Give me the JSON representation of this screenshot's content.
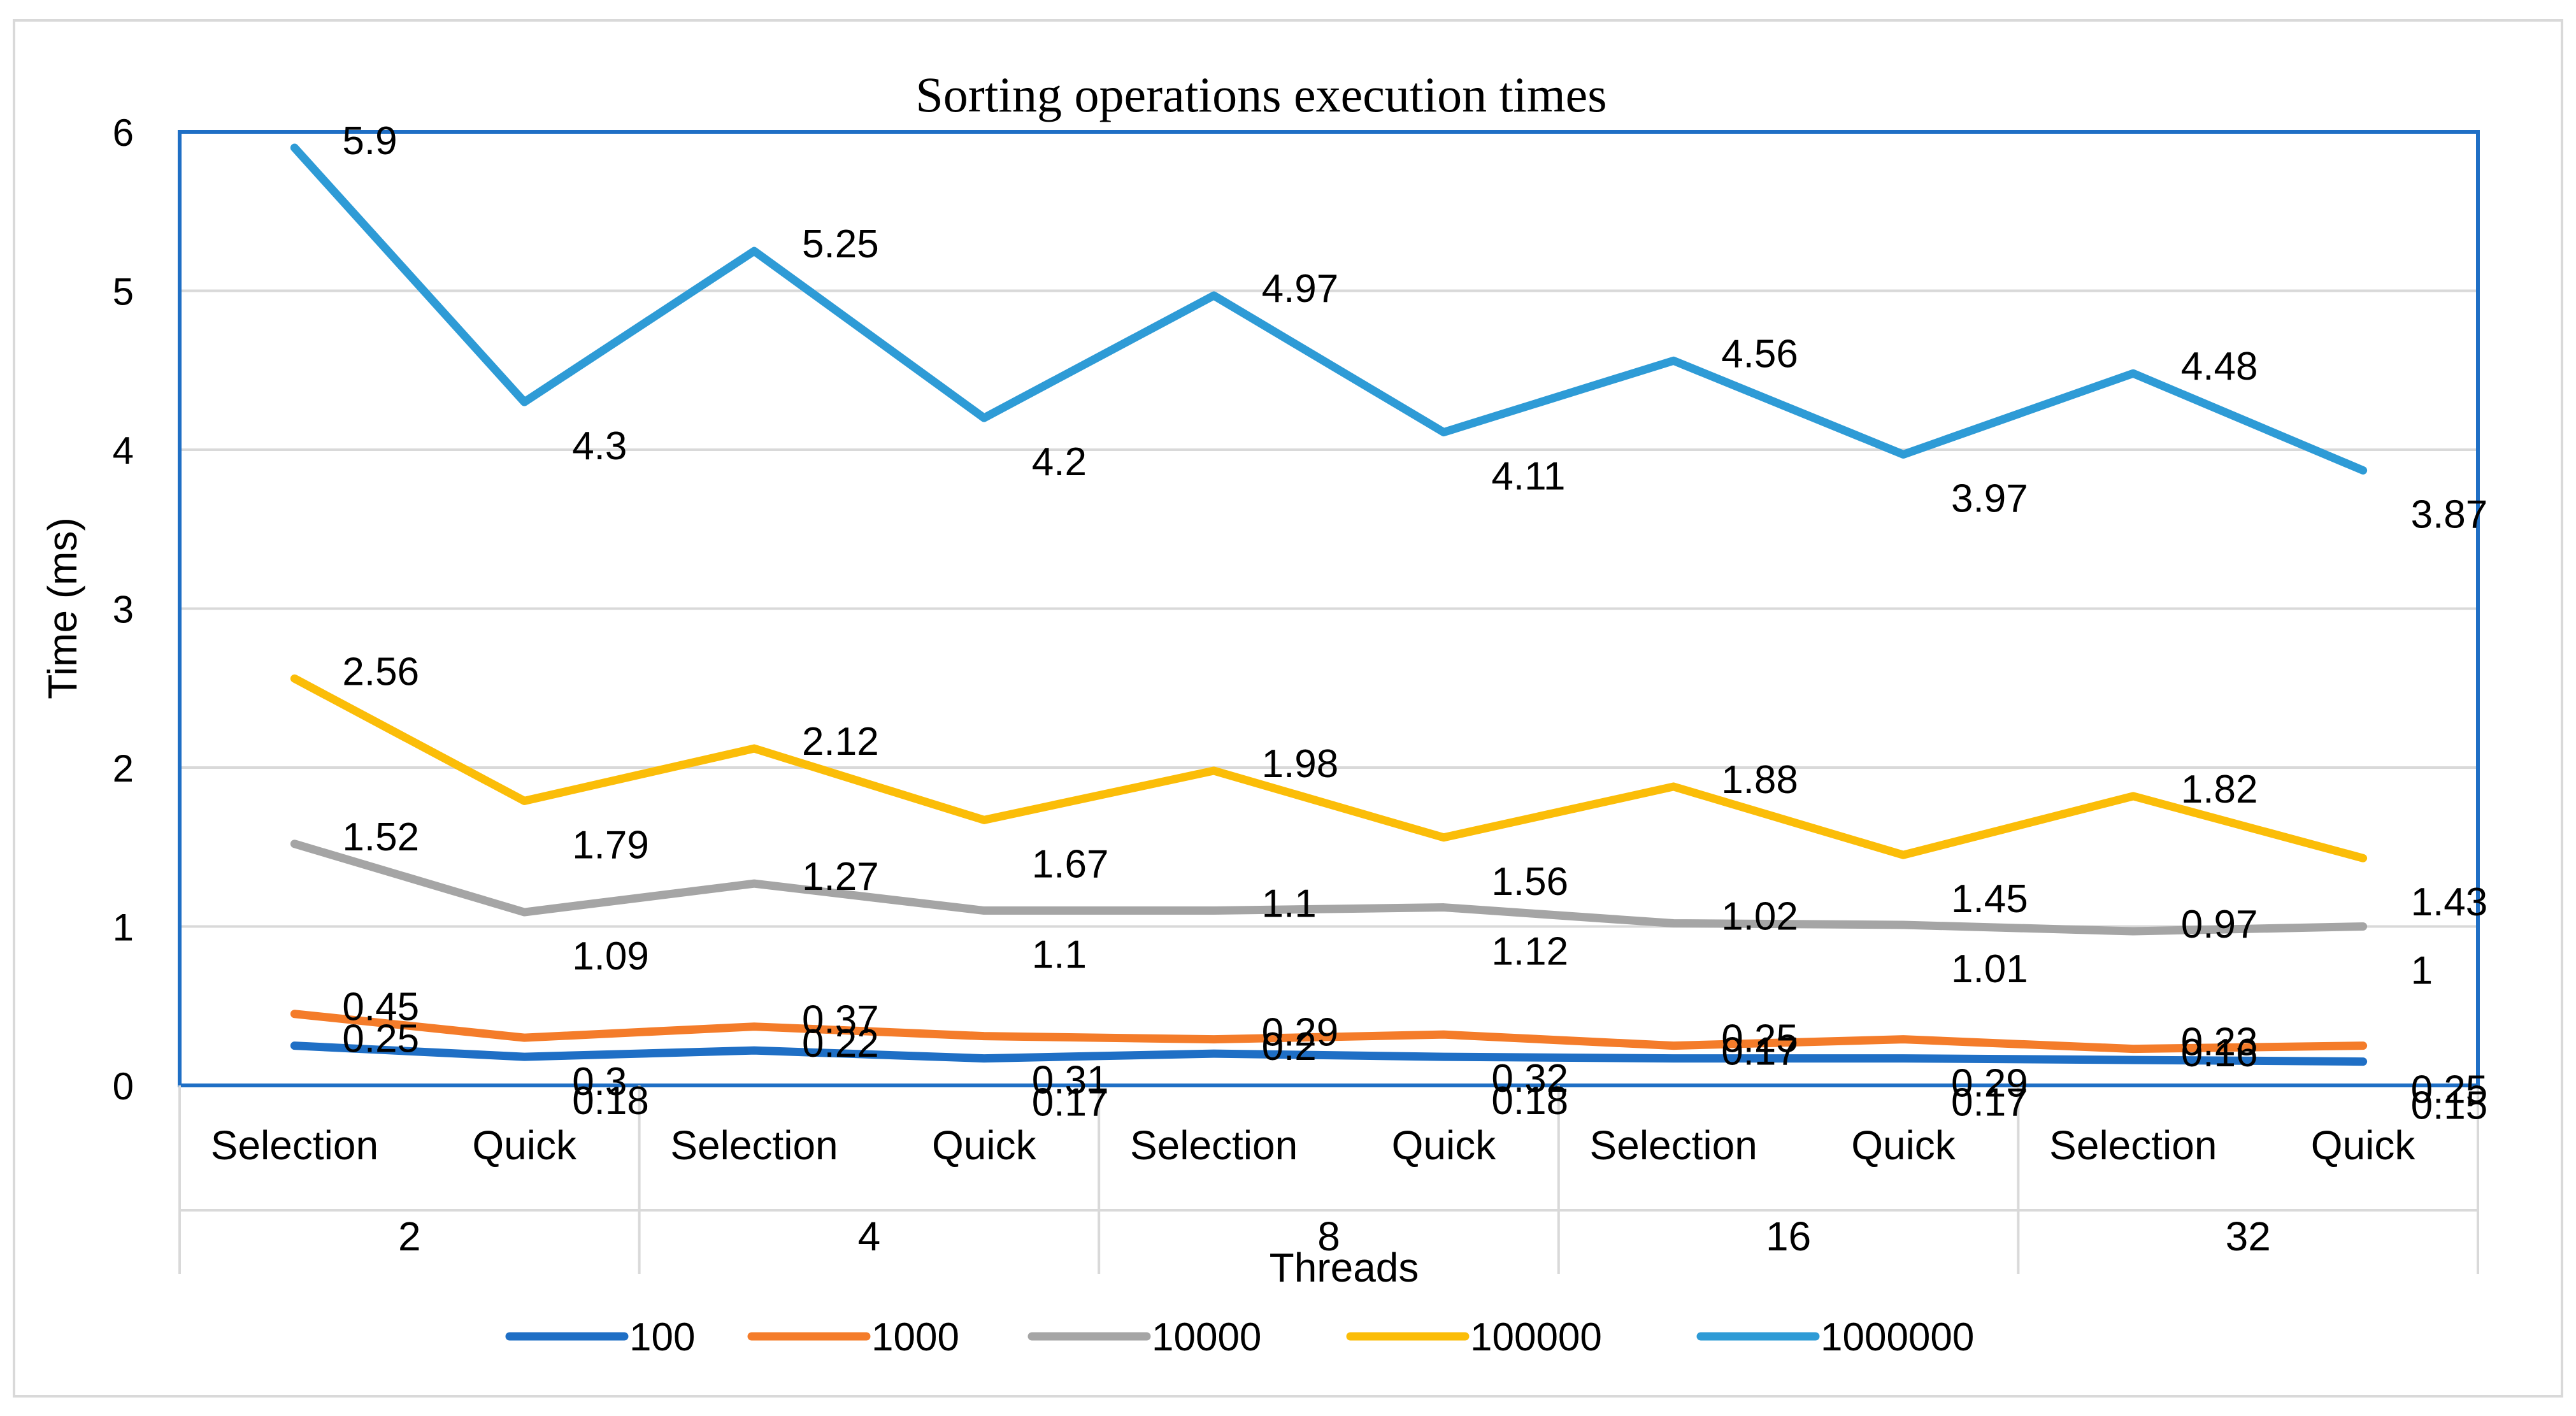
{
  "chart_data": {
    "type": "line",
    "title": "Sorting operations execution times",
    "xlabel": "Threads",
    "ylabel": "Time (ms)",
    "ylim": [
      0,
      6
    ],
    "yticks": [
      "0",
      "1",
      "2",
      "3",
      "4",
      "5",
      "6"
    ],
    "grid": true,
    "legend_position": "bottom",
    "categories": [
      "Selection",
      "Quick",
      "Selection",
      "Quick",
      "Selection",
      "Quick",
      "Selection",
      "Quick",
      "Selection",
      "Quick"
    ],
    "groups": [
      "2",
      "4",
      "8",
      "16",
      "32"
    ],
    "series": [
      {
        "name": "100",
        "color": "#1f6fc5",
        "values": [
          0.25,
          0.18,
          0.22,
          0.17,
          0.2,
          0.18,
          0.17,
          0.17,
          0.16,
          0.15
        ],
        "labels": [
          "0.25",
          "0.18",
          "0.22",
          "0.17",
          "0.2",
          "0.18",
          "0.17",
          "0.17",
          "0.16",
          "0.15"
        ]
      },
      {
        "name": "1000",
        "color": "#f47c2a",
        "values": [
          0.45,
          0.3,
          0.37,
          0.31,
          0.29,
          0.32,
          0.25,
          0.29,
          0.23,
          0.25
        ],
        "labels": [
          "0.45",
          "0.3",
          "0.37",
          "0.31",
          "0.29",
          "0.32",
          "0.25",
          "0.29",
          "0.23",
          "0.25"
        ]
      },
      {
        "name": "10000",
        "color": "#a5a5a5",
        "values": [
          1.52,
          1.09,
          1.27,
          1.1,
          1.1,
          1.12,
          1.02,
          1.01,
          0.97,
          1.0
        ],
        "labels": [
          "1.52",
          "1.09",
          "1.27",
          "1.1",
          "1.1",
          "1.12",
          "1.02",
          "1.01",
          "0.97",
          "1"
        ]
      },
      {
        "name": "100000",
        "color": "#fbbd08",
        "values": [
          2.56,
          1.79,
          2.12,
          1.67,
          1.98,
          1.56,
          1.88,
          1.45,
          1.82,
          1.43
        ],
        "labels": [
          "2.56",
          "1.79",
          "2.12",
          "1.67",
          "1.98",
          "1.56",
          "1.88",
          "1.45",
          "1.82",
          "1.43"
        ]
      },
      {
        "name": "1000000",
        "color": "#2e9bd6",
        "values": [
          5.9,
          4.3,
          5.25,
          4.2,
          4.97,
          4.11,
          4.56,
          3.97,
          4.48,
          3.87
        ],
        "labels": [
          "5.9",
          "4.3",
          "5.25",
          "4.2",
          "4.97",
          "4.11",
          "4.56",
          "3.97",
          "4.48",
          "3.87"
        ]
      }
    ]
  }
}
